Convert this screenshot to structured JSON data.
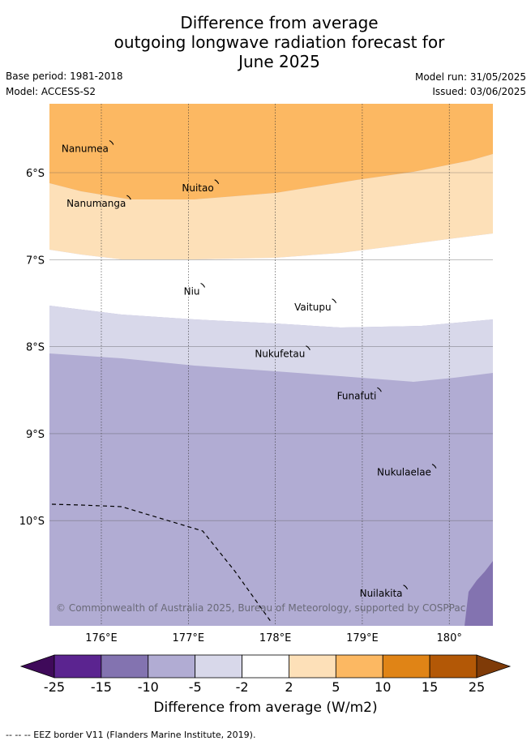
{
  "title_lines": [
    "Difference from average",
    "outgoing longwave radiation forecast for",
    "June 2025"
  ],
  "base_period": "Base period: 1981-2018",
  "model": "Model: ACCESS-S2",
  "model_run": "Model run: 31/05/2025",
  "issued": "Issued: 03/06/2025",
  "copyright": "© Commonwealth of Australia 2025, Bureau of Meteorology, supported by COSPPac",
  "lon_ticks": [
    "176°E",
    "177°E",
    "178°E",
    "179°E",
    "180°"
  ],
  "lat_ticks": [
    "6°S",
    "7°S",
    "8°S",
    "9°S",
    "10°S"
  ],
  "islands": [
    {
      "name": "Nanumea",
      "lon": 176.12,
      "lat": -5.66
    },
    {
      "name": "Nuitao",
      "lon": 177.33,
      "lat": -6.11
    },
    {
      "name": "Nanumanga",
      "lon": 176.32,
      "lat": -6.29
    },
    {
      "name": "Niu",
      "lon": 177.17,
      "lat": -7.3
    },
    {
      "name": "Vaitupu",
      "lon": 178.68,
      "lat": -7.48
    },
    {
      "name": "Nukufetau",
      "lon": 178.38,
      "lat": -8.02
    },
    {
      "name": "Funafuti",
      "lon": 179.2,
      "lat": -8.5
    },
    {
      "name": "Nukulaelae",
      "lon": 179.83,
      "lat": -9.38
    },
    {
      "name": "Nuilakita",
      "lon": 179.5,
      "lat": -10.77
    }
  ],
  "colorbar": {
    "tick_labels": [
      "-25",
      "-15",
      "-10",
      "-5",
      "-2",
      "2",
      "5",
      "10",
      "15",
      "25"
    ],
    "colors": [
      "#3f0a5a",
      "#5b2490",
      "#8373b0",
      "#b1acd3",
      "#d8d8ea",
      "#ffffff",
      "#fde0b8",
      "#fcb862",
      "#e08416",
      "#b35806",
      "#7f3b08"
    ],
    "label": "Difference from average (W/m2)"
  },
  "legend_note": "--  --  -- EEZ border V11 (Flanders Marine Institute, 2019)."
}
